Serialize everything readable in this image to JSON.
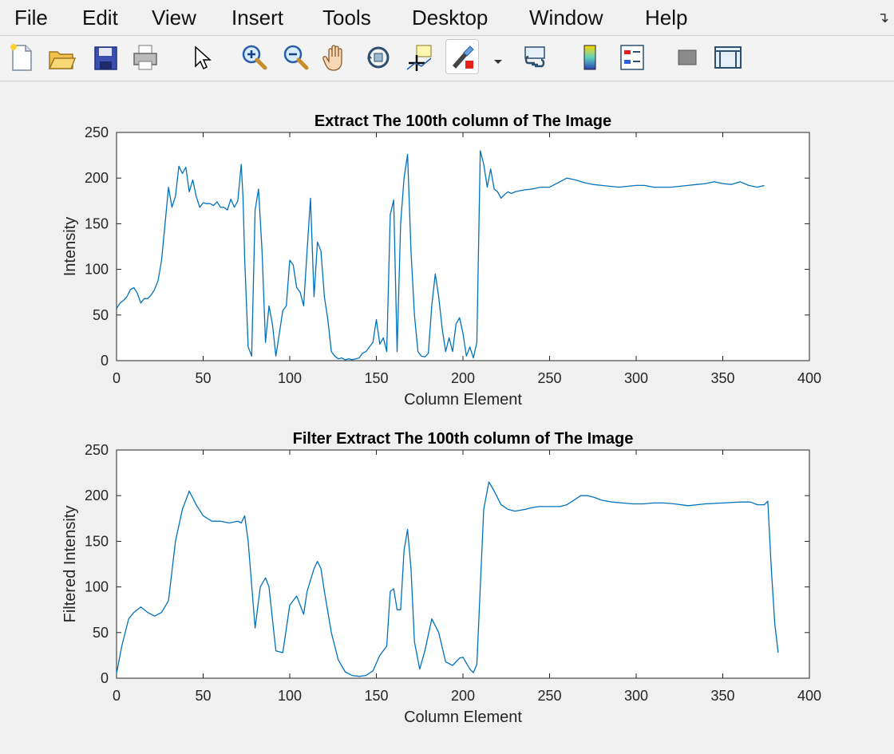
{
  "menu": {
    "items": [
      "File",
      "Edit",
      "View",
      "Insert",
      "Tools",
      "Desktop",
      "Window",
      "Help"
    ]
  },
  "toolbar": {
    "icons": [
      "new-figure-icon",
      "open-file-icon",
      "save-icon",
      "print-icon",
      "pointer-icon",
      "zoom-in-icon",
      "zoom-out-icon",
      "pan-icon",
      "rotate-3d-icon",
      "data-cursor-icon",
      "brush-icon",
      "dropdown-arrow-icon",
      "link-plot-icon",
      "colorbar-icon",
      "legend-icon",
      "hide-plot-tools-icon",
      "show-plot-tools-icon"
    ]
  },
  "colors": {
    "line": "#0072bd",
    "axes_bg": "#ffffff",
    "figure_bg": "#f0f0f0"
  },
  "chart_data": [
    {
      "type": "line",
      "title": "Extract The 100th column of The Image",
      "xlabel": "Column Element",
      "ylabel": "Intensity",
      "xlim": [
        0,
        400
      ],
      "ylim": [
        0,
        250
      ],
      "xticks": [
        0,
        50,
        100,
        150,
        200,
        250,
        300,
        350,
        400
      ],
      "yticks": [
        0,
        50,
        100,
        150,
        200,
        250
      ],
      "grid": false,
      "series": [
        {
          "x": [
            0,
            2,
            4,
            6,
            8,
            10,
            12,
            14,
            16,
            18,
            20,
            22,
            24,
            26,
            28,
            30,
            32,
            34,
            36,
            38,
            40,
            42,
            44,
            46,
            48,
            50,
            52,
            54,
            56,
            58,
            60,
            62,
            64,
            66,
            68,
            70,
            72,
            73,
            74,
            76,
            78,
            80,
            82,
            84,
            86,
            88,
            90,
            92,
            94,
            96,
            98,
            100,
            102,
            104,
            106,
            108,
            110,
            112,
            114,
            116,
            118,
            120,
            122,
            124,
            126,
            128,
            130,
            132,
            134,
            136,
            138,
            140,
            142,
            144,
            146,
            148,
            150,
            152,
            154,
            156,
            158,
            160,
            162,
            164,
            166,
            168,
            170,
            172,
            174,
            176,
            178,
            180,
            182,
            184,
            186,
            188,
            190,
            192,
            194,
            196,
            198,
            200,
            202,
            204,
            206,
            208,
            210,
            212,
            214,
            216,
            218,
            220,
            222,
            224,
            226,
            228,
            230,
            235,
            240,
            245,
            250,
            255,
            260,
            265,
            270,
            275,
            280,
            285,
            290,
            295,
            300,
            305,
            310,
            315,
            320,
            325,
            330,
            335,
            340,
            345,
            350,
            355,
            360,
            365,
            370,
            374
          ],
          "y": [
            57,
            63,
            66,
            70,
            78,
            80,
            74,
            63,
            68,
            68,
            72,
            78,
            88,
            110,
            150,
            190,
            168,
            180,
            213,
            205,
            212,
            185,
            198,
            180,
            168,
            173,
            172,
            172,
            170,
            174,
            168,
            168,
            165,
            177,
            168,
            175,
            215,
            180,
            110,
            15,
            5,
            165,
            188,
            120,
            20,
            60,
            40,
            5,
            30,
            55,
            60,
            110,
            105,
            80,
            75,
            60,
            120,
            178,
            70,
            130,
            120,
            70,
            45,
            10,
            5,
            2,
            3,
            1,
            2,
            1,
            2,
            3,
            8,
            10,
            15,
            20,
            45,
            18,
            25,
            10,
            160,
            176,
            10,
            150,
            200,
            226,
            120,
            50,
            10,
            5,
            4,
            8,
            60,
            95,
            70,
            35,
            10,
            25,
            10,
            40,
            47,
            30,
            5,
            15,
            3,
            20,
            230,
            215,
            190,
            210,
            188,
            185,
            178,
            182,
            185,
            183,
            185,
            187,
            188,
            190,
            190,
            195,
            200,
            198,
            195,
            193,
            192,
            191,
            190,
            191,
            192,
            192,
            190,
            190,
            190,
            191,
            192,
            193,
            194,
            196,
            194,
            193,
            196,
            192,
            190,
            192
          ]
        }
      ]
    },
    {
      "type": "line",
      "title": "Filter Extract The 100th column of The Image",
      "xlabel": "Column Element",
      "ylabel": "Filtered Intensity",
      "xlim": [
        0,
        400
      ],
      "ylim": [
        0,
        250
      ],
      "xticks": [
        0,
        50,
        100,
        150,
        200,
        250,
        300,
        350,
        400
      ],
      "yticks": [
        0,
        50,
        100,
        150,
        200,
        250
      ],
      "grid": false,
      "series": [
        {
          "x": [
            0,
            3,
            7,
            10,
            14,
            18,
            22,
            26,
            30,
            34,
            38,
            42,
            46,
            50,
            55,
            60,
            65,
            70,
            72,
            74,
            76,
            80,
            83,
            86,
            88,
            92,
            96,
            100,
            104,
            108,
            110,
            114,
            116,
            118,
            120,
            124,
            128,
            132,
            136,
            140,
            144,
            148,
            152,
            156,
            158,
            160,
            162,
            164,
            166,
            168,
            170,
            172,
            175,
            178,
            182,
            186,
            190,
            194,
            198,
            200,
            204,
            206,
            208,
            212,
            215,
            218,
            222,
            226,
            230,
            236,
            240,
            244,
            248,
            252,
            256,
            260,
            264,
            268,
            272,
            276,
            280,
            286,
            292,
            298,
            304,
            310,
            316,
            322,
            330,
            340,
            350,
            360,
            366,
            370,
            374,
            376,
            378,
            380,
            382
          ],
          "y": [
            5,
            35,
            65,
            72,
            78,
            72,
            68,
            72,
            85,
            150,
            185,
            205,
            190,
            178,
            172,
            172,
            170,
            172,
            170,
            178,
            150,
            55,
            100,
            110,
            100,
            30,
            28,
            80,
            90,
            70,
            95,
            120,
            128,
            120,
            95,
            50,
            20,
            7,
            3,
            2,
            3,
            8,
            25,
            35,
            95,
            98,
            75,
            75,
            140,
            163,
            120,
            40,
            10,
            30,
            65,
            50,
            18,
            14,
            22,
            23,
            10,
            6,
            15,
            185,
            215,
            205,
            190,
            185,
            183,
            185,
            187,
            188,
            188,
            188,
            188,
            190,
            195,
            200,
            200,
            198,
            195,
            193,
            192,
            191,
            191,
            192,
            192,
            191,
            189,
            191,
            192,
            193,
            193,
            190,
            190,
            194,
            120,
            60,
            28
          ]
        }
      ]
    }
  ]
}
